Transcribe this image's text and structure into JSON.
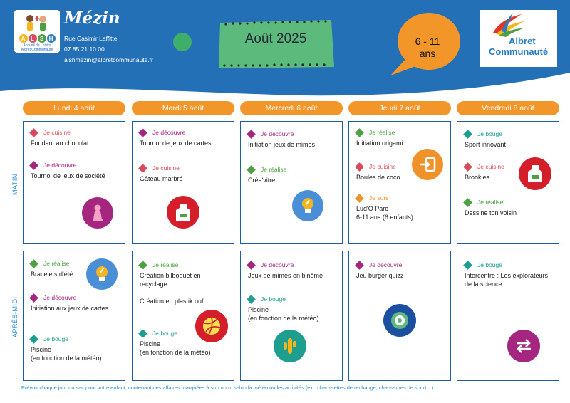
{
  "header": {
    "site_name": "Mézin",
    "logo_letters": [
      "A",
      "L",
      "S",
      "H"
    ],
    "logo_line1": "Accueil de Loisirs",
    "logo_line2": "Albret Communauté",
    "address": "Rue Casimir Laffitte",
    "phone": "07 85 21 10 00",
    "email": "alshmézin@albretcommunaute.fr",
    "month": "Août 2025",
    "age_range": "6 - 11",
    "age_unit": "ans",
    "partner_line1": "Albret",
    "partner_line2": "Communauté"
  },
  "days": [
    "Lundi 4 août",
    "Mardi 5 août",
    "Mercredi 6 août",
    "Jeudi 7 août",
    "Vendredi 8 août"
  ],
  "periods": {
    "morning": "MATIN",
    "afternoon": "APRÈS-MIDI"
  },
  "schedule": {
    "morning": [
      [
        {
          "tag": "Je cuisine",
          "title": "Fondant au chocolat"
        },
        {
          "tag": "Je découvre",
          "title": "Tournoi de jeux de société"
        }
      ],
      [
        {
          "tag": "Je découvre",
          "title": "Tournoi de jeux de cartes"
        },
        {
          "tag": "Je cuisine",
          "title": "Gâteau marbré"
        }
      ],
      [
        {
          "tag": "Je découvre",
          "title": "Initiation jeux de mimes"
        },
        {
          "tag": "Je réalise",
          "title": "Créa'vitre"
        }
      ],
      [
        {
          "tag": "Je réalise",
          "title": "Initiation origami"
        },
        {
          "tag": "Je cuisine",
          "title": "Boules de coco"
        },
        {
          "tag": "Je sors",
          "title": "Lud'O Parc",
          "title2": "6-11 ans (6 enfants)"
        }
      ],
      [
        {
          "tag": "Je bouge",
          "title": "Sport innovant"
        },
        {
          "tag": "Je cuisine",
          "title": "Brookies"
        },
        {
          "tag": "Je réalise",
          "title": "Dessine ton voisin"
        }
      ]
    ],
    "afternoon": [
      [
        {
          "tag": "Je réalise",
          "title": "Bracelets d'été"
        },
        {
          "tag": "Je découvre",
          "title": "Initiation aux jeux de cartes"
        },
        {
          "tag": "Je bouge",
          "title": "Piscine",
          "title2": "(en fonction de la météo)"
        }
      ],
      [
        {
          "tag": "Je réalise",
          "title": "Création bilboquet en",
          "title2": "recyclage"
        },
        {
          "tag": "",
          "title": "Création en plastik ouf"
        },
        {
          "tag": "Je bouge",
          "title": "Piscine",
          "title2": "(en fonction de la météo)"
        }
      ],
      [
        {
          "tag": "Je découvre",
          "title": "Jeux de mimes en binôme"
        },
        {
          "tag": "Je bouge",
          "title": "Piscine",
          "title2": "(en fonction de la météo)"
        }
      ],
      [
        {
          "tag": "Je découvre",
          "title": "Jeu burger quizz"
        }
      ],
      [
        {
          "tag": "Je bouge",
          "title": "Intercentre : Les explorateurs",
          "title2": "de la science"
        }
      ]
    ]
  },
  "categories": {
    "Je cuisine": "#d94a5c",
    "Je découvre": "#a4267e",
    "Je réalise": "#4fa045",
    "Je bouge": "#1d9e8e",
    "Je sors": "#f0922a"
  },
  "icons": {
    "pawn-icon": "#a4267e",
    "apron-icon": "#d94a5c",
    "lightbulb-icon": "#4a8fd6",
    "exit-icon": "#f0922a",
    "volleyball-icon": "#d94a5c",
    "cactus-icon": "#1d9e8e",
    "target-icon": "#1c4fa0",
    "swap-arrows-icon": "#a4267e"
  },
  "footer": "Prévoir chaque jour un sac pour votre enfant, contenant des affaires marquées à son nom, selon la météo ou les activités (ex : chaussettes de rechange, chaussures de sport…)"
}
